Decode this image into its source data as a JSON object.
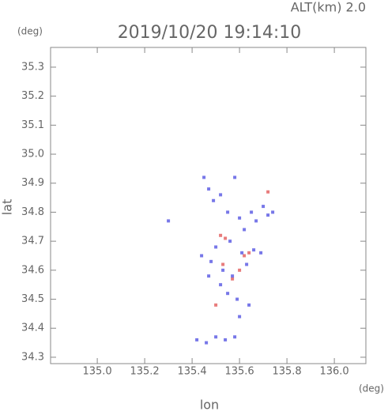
{
  "alt_label": "ALT(km)  2.0",
  "chart_data": {
    "type": "scatter",
    "title": "2019/10/20 19:14:10",
    "x_label": "lon",
    "y_label": "lat",
    "x_unit": "(deg)",
    "y_unit": "(deg)",
    "xlim": [
      134.803,
      136.133
    ],
    "ylim": [
      34.278,
      35.368
    ],
    "xticks": [
      {
        "value": 135.0,
        "label": "135.0"
      },
      135.2,
      135.4,
      135.6,
      135.8,
      {
        "value": 136.0,
        "label": "136.0"
      }
    ],
    "yticks": [
      34.3,
      34.4,
      34.5,
      34.6,
      34.7,
      34.8,
      34.9,
      {
        "value": 35.0,
        "label": "35.0"
      },
      35.1,
      35.2,
      35.3
    ],
    "series": [
      {
        "color": "#e05050",
        "x": [
          135.52,
          135.54,
          135.62,
          135.64,
          135.72,
          135.57,
          135.5,
          135.6,
          135.53
        ],
        "y": [
          34.72,
          34.71,
          34.65,
          34.66,
          34.87,
          34.57,
          34.48,
          34.6,
          34.62
        ]
      },
      {
        "color": "#4a4ae0",
        "x": [
          135.45,
          135.47,
          135.49,
          135.52,
          135.55,
          135.58,
          135.6,
          135.62,
          135.65,
          135.67,
          135.7,
          135.72,
          135.74,
          135.5,
          135.56,
          135.61,
          135.44,
          135.48,
          135.53,
          135.57,
          135.63,
          135.55,
          135.59,
          135.42,
          135.46,
          135.5,
          135.54,
          135.58,
          135.3,
          135.66,
          135.69,
          135.52,
          135.6,
          135.47,
          135.64
        ],
        "y": [
          34.92,
          34.88,
          34.84,
          34.86,
          34.8,
          34.92,
          34.78,
          34.74,
          34.8,
          34.77,
          34.82,
          34.79,
          34.8,
          34.68,
          34.7,
          34.66,
          34.65,
          34.63,
          34.6,
          34.58,
          34.62,
          34.52,
          34.5,
          34.36,
          34.35,
          34.37,
          34.36,
          34.37,
          34.77,
          34.67,
          34.66,
          34.55,
          34.44,
          34.58,
          34.48
        ]
      }
    ]
  }
}
